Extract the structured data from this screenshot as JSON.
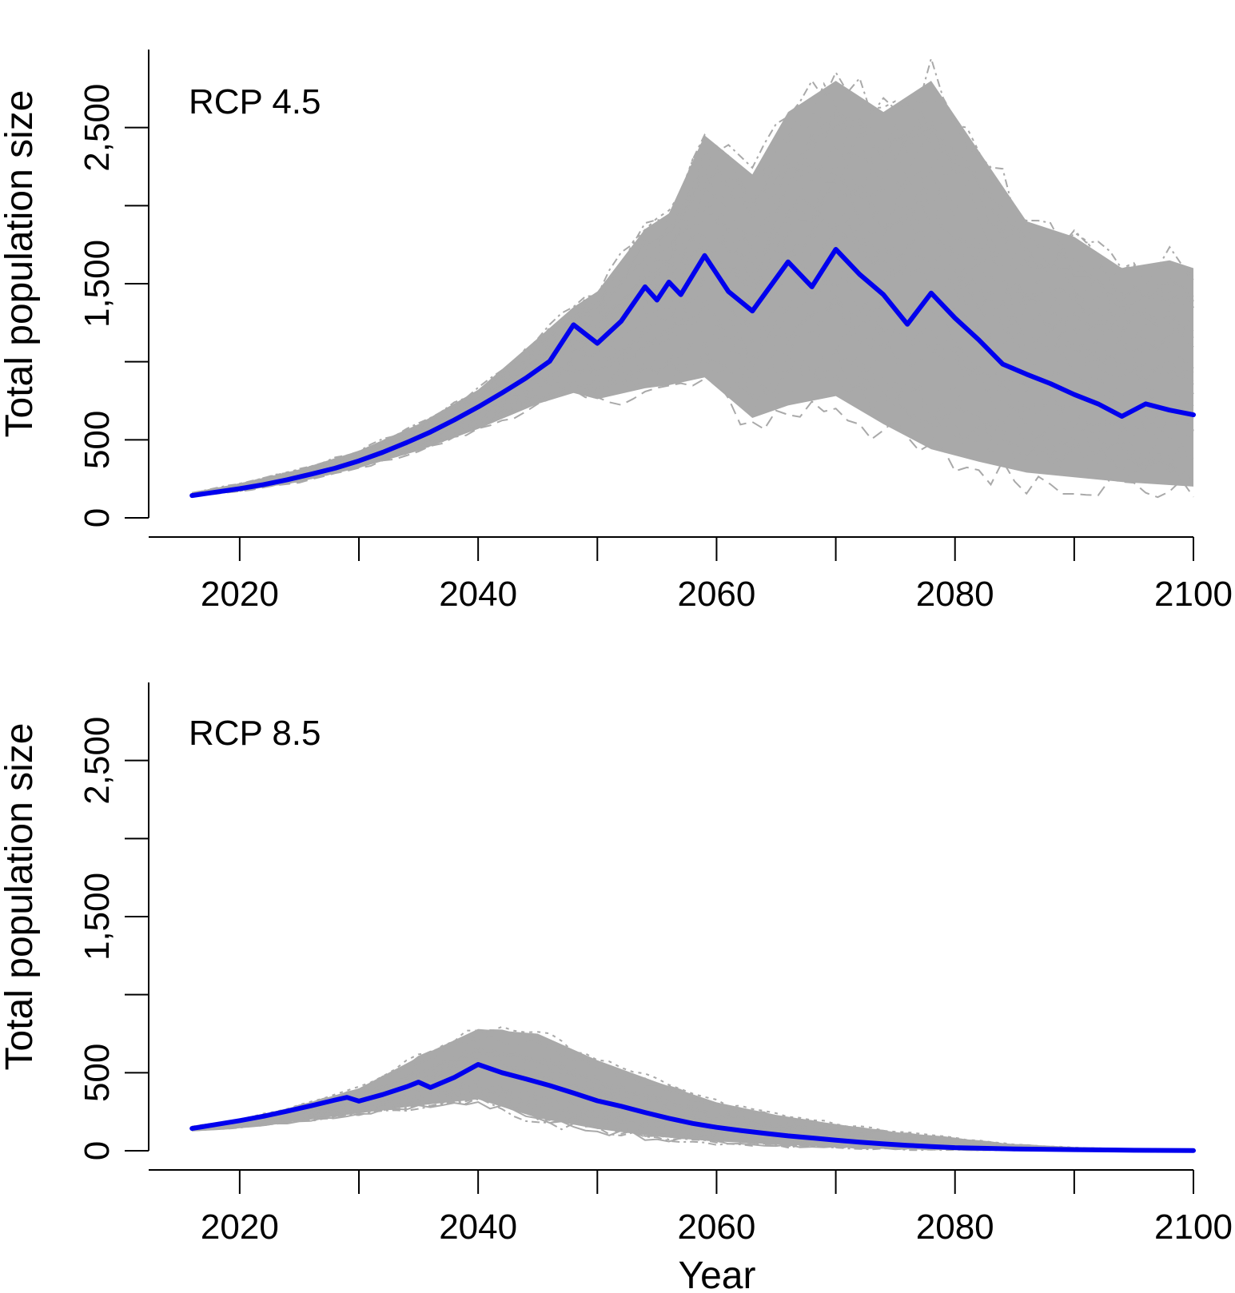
{
  "chart_data": [
    {
      "type": "line",
      "panel_label": "RCP 4.5",
      "xlabel": "",
      "ylabel": "Total population size",
      "xlim": [
        2012.5,
        2100
      ],
      "ylim": [
        0,
        3000
      ],
      "x_ticks": [
        2020,
        2040,
        2060,
        2080,
        2100
      ],
      "x_minor_ticks": [
        2030,
        2050,
        2070,
        2090
      ],
      "y_ticks": [
        0,
        500,
        1000,
        1500,
        2000,
        2500
      ],
      "y_tick_labels": [
        "0",
        "500",
        "",
        "1,500",
        "",
        "2,500"
      ],
      "grid": false,
      "colors": {
        "mean": "#0000ee",
        "simulations": "#a9a9a9"
      },
      "envelope": {
        "name": "simulations",
        "x": [
          2016,
          2020,
          2025,
          2030,
          2035,
          2040,
          2045,
          2048,
          2050,
          2054,
          2056,
          2059,
          2063,
          2066,
          2070,
          2074,
          2078,
          2082,
          2086,
          2090,
          2094,
          2098,
          2100
        ],
        "lower": [
          140,
          170,
          230,
          320,
          430,
          570,
          730,
          800,
          760,
          830,
          850,
          900,
          640,
          720,
          780,
          600,
          440,
          360,
          290,
          260,
          230,
          210,
          200
        ],
        "upper": [
          160,
          220,
          310,
          430,
          600,
          820,
          1150,
          1350,
          1450,
          1850,
          1950,
          2450,
          2200,
          2600,
          2800,
          2600,
          2800,
          2350,
          1900,
          1800,
          1600,
          1650,
          1600
        ]
      },
      "series": [
        {
          "name": "",
          "x": [
            2016,
            2018,
            2020,
            2022,
            2024,
            2026,
            2028,
            2030,
            2032,
            2034,
            2036,
            2038,
            2040,
            2042,
            2044,
            2046,
            2048,
            2050,
            2052,
            2054,
            2055,
            2056,
            2057,
            2059,
            2061,
            2063,
            2066,
            2068,
            2070,
            2072,
            2074,
            2076,
            2078,
            2080,
            2082,
            2084,
            2086,
            2088,
            2090,
            2092,
            2094,
            2096,
            2098,
            2100
          ],
          "y": [
            143,
            165,
            187,
            213,
            244,
            280,
            318,
            365,
            420,
            482,
            550,
            627,
            710,
            800,
            895,
            1003,
            1237,
            1118,
            1260,
            1480,
            1395,
            1510,
            1430,
            1680,
            1450,
            1325,
            1640,
            1480,
            1720,
            1560,
            1430,
            1240,
            1440,
            1280,
            1140,
            985,
            920,
            860,
            790,
            730,
            650,
            730,
            690,
            660
          ]
        }
      ]
    },
    {
      "type": "line",
      "panel_label": "RCP 8.5",
      "xlabel": "Year",
      "ylabel": "Total population size",
      "xlim": [
        2012.5,
        2100
      ],
      "ylim": [
        0,
        3000
      ],
      "x_ticks": [
        2020,
        2040,
        2060,
        2080,
        2100
      ],
      "x_minor_ticks": [
        2030,
        2050,
        2070,
        2090
      ],
      "y_ticks": [
        0,
        500,
        1000,
        1500,
        2000,
        2500
      ],
      "y_tick_labels": [
        "0",
        "500",
        "",
        "1,500",
        "",
        "2,500"
      ],
      "grid": false,
      "colors": {
        "mean": "#0000ee",
        "simulations": "#a9a9a9"
      },
      "envelope": {
        "name": "simulations",
        "x": [
          2016,
          2020,
          2025,
          2030,
          2035,
          2040,
          2045,
          2050,
          2055,
          2060,
          2065,
          2070,
          2075,
          2080,
          2085,
          2090,
          2095,
          2100
        ],
        "lower": [
          130,
          150,
          190,
          240,
          290,
          330,
          210,
          140,
          90,
          60,
          40,
          25,
          15,
          8,
          4,
          2,
          1,
          0
        ],
        "upper": [
          155,
          200,
          290,
          400,
          600,
          780,
          750,
          580,
          440,
          310,
          230,
          170,
          120,
          80,
          40,
          20,
          10,
          5
        ]
      },
      "series": [
        {
          "name": "",
          "x": [
            2016,
            2018,
            2020,
            2022,
            2024,
            2026,
            2028,
            2029,
            2030,
            2032,
            2034,
            2035,
            2036,
            2038,
            2040,
            2042,
            2044,
            2046,
            2048,
            2050,
            2052,
            2054,
            2056,
            2058,
            2060,
            2062,
            2064,
            2066,
            2068,
            2070,
            2072,
            2074,
            2076,
            2078,
            2080,
            2085,
            2090,
            2095,
            2100
          ],
          "y": [
            143,
            168,
            193,
            221,
            254,
            288,
            325,
            342,
            318,
            360,
            410,
            440,
            405,
            470,
            553,
            500,
            460,
            418,
            370,
            320,
            285,
            245,
            208,
            175,
            150,
            130,
            112,
            95,
            82,
            68,
            55,
            44,
            35,
            27,
            20,
            12,
            7,
            3,
            1
          ]
        }
      ]
    }
  ]
}
